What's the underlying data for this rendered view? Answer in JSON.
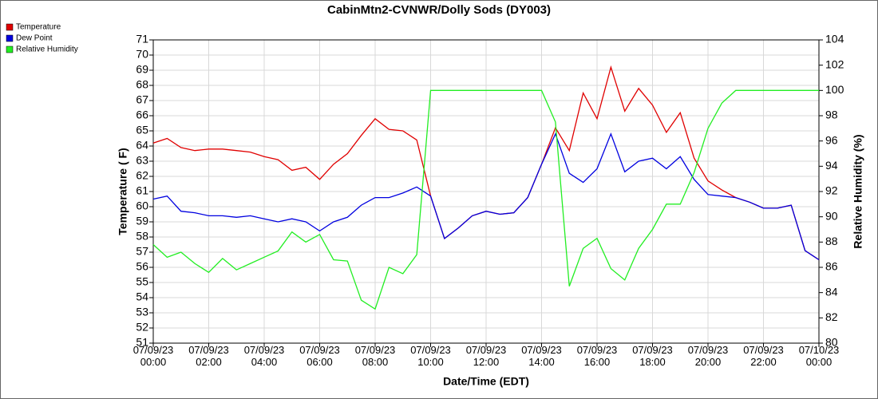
{
  "chart_data": {
    "type": "line",
    "title": "CabinMtn2-CVNWR/Dolly Sods (DY003)",
    "xlabel": "Date/Time (EDT)",
    "ylabel": "Temperature ( F)",
    "y2label": "Relative Humidity (%)",
    "x": [
      0,
      0.5,
      1,
      1.5,
      2,
      2.5,
      3,
      3.5,
      4,
      4.5,
      5,
      5.5,
      6,
      6.5,
      7,
      7.5,
      8,
      8.5,
      9,
      9.5,
      10,
      10.5,
      11,
      11.5,
      12,
      12.5,
      13,
      13.5,
      14,
      14.5,
      15,
      15.5,
      16,
      16.5,
      17,
      17.5,
      18,
      18.5,
      19,
      19.5,
      20,
      20.5,
      21,
      21.5,
      22,
      22.5,
      23,
      23.5,
      24
    ],
    "series": [
      {
        "name": "Temperature",
        "color": "#e00000",
        "values": [
          64.2,
          64.5,
          63.9,
          63.7,
          63.8,
          63.8,
          63.7,
          63.6,
          63.3,
          63.1,
          62.4,
          62.6,
          61.8,
          62.8,
          63.5,
          64.7,
          65.8,
          65.1,
          65.0,
          64.4,
          60.7,
          57.9,
          58.6,
          59.4,
          59.7,
          59.5,
          59.6,
          60.6,
          62.8,
          65.2,
          63.7,
          67.5,
          65.8,
          69.2,
          66.3,
          67.8,
          66.7,
          64.9,
          66.2,
          63.2,
          61.7,
          61.1,
          60.6,
          60.3,
          59.9,
          59.9,
          60.1,
          57.1,
          56.5
        ]
      },
      {
        "name": "Dew Point",
        "color": "#0000e0",
        "values": [
          60.5,
          60.7,
          59.7,
          59.6,
          59.4,
          59.4,
          59.3,
          59.4,
          59.2,
          59.0,
          59.2,
          59.0,
          58.4,
          59.0,
          59.3,
          60.1,
          60.6,
          60.6,
          60.9,
          61.3,
          60.7,
          57.9,
          58.6,
          59.4,
          59.7,
          59.5,
          59.6,
          60.6,
          62.8,
          64.8,
          62.2,
          61.6,
          62.5,
          64.8,
          62.3,
          63.0,
          63.2,
          62.5,
          63.3,
          61.8,
          60.8,
          60.7,
          60.6,
          60.3,
          59.9,
          59.9,
          60.1,
          57.1,
          56.5
        ]
      },
      {
        "name": "Relative Humidity",
        "color": "#22ee22",
        "axis": "y2",
        "values": [
          87.8,
          86.8,
          87.2,
          86.3,
          85.6,
          86.7,
          85.8,
          86.3,
          86.8,
          87.3,
          88.8,
          88.0,
          88.6,
          86.6,
          86.5,
          83.4,
          82.7,
          86.0,
          85.5,
          87.0,
          100,
          100,
          100,
          100,
          100,
          100,
          100,
          100,
          100,
          97.5,
          84.5,
          87.5,
          88.3,
          85.9,
          85.0,
          87.5,
          89.0,
          91.0,
          91.0,
          93.5,
          97.0,
          99.0,
          100,
          100,
          100,
          100,
          100,
          100,
          100
        ]
      }
    ],
    "xlim": [
      0,
      24
    ],
    "xticks": [
      {
        "value": 0,
        "label": "07/09/23 00:00"
      },
      {
        "value": 2,
        "label": "07/09/23 02:00"
      },
      {
        "value": 4,
        "label": "07/09/23 04:00"
      },
      {
        "value": 6,
        "label": "07/09/23 06:00"
      },
      {
        "value": 8,
        "label": "07/09/23 08:00"
      },
      {
        "value": 10,
        "label": "07/09/23 10:00"
      },
      {
        "value": 12,
        "label": "07/09/23 12:00"
      },
      {
        "value": 14,
        "label": "07/09/23 14:00"
      },
      {
        "value": 16,
        "label": "07/09/23 16:00"
      },
      {
        "value": 18,
        "label": "07/09/23 18:00"
      },
      {
        "value": 20,
        "label": "07/09/23 20:00"
      },
      {
        "value": 22,
        "label": "07/09/23 22:00"
      },
      {
        "value": 24,
        "label": "07/10/23 00:00"
      }
    ],
    "ylim": [
      51,
      71
    ],
    "yticks": [
      51,
      52,
      53,
      54,
      55,
      56,
      57,
      58,
      59,
      60,
      61,
      62,
      63,
      64,
      65,
      66,
      67,
      68,
      69,
      70,
      71
    ],
    "y2lim": [
      80,
      104
    ],
    "y2ticks": [
      80,
      82,
      84,
      86,
      88,
      90,
      92,
      94,
      96,
      98,
      100,
      102,
      104
    ],
    "grid": true,
    "legend": "top-left"
  }
}
